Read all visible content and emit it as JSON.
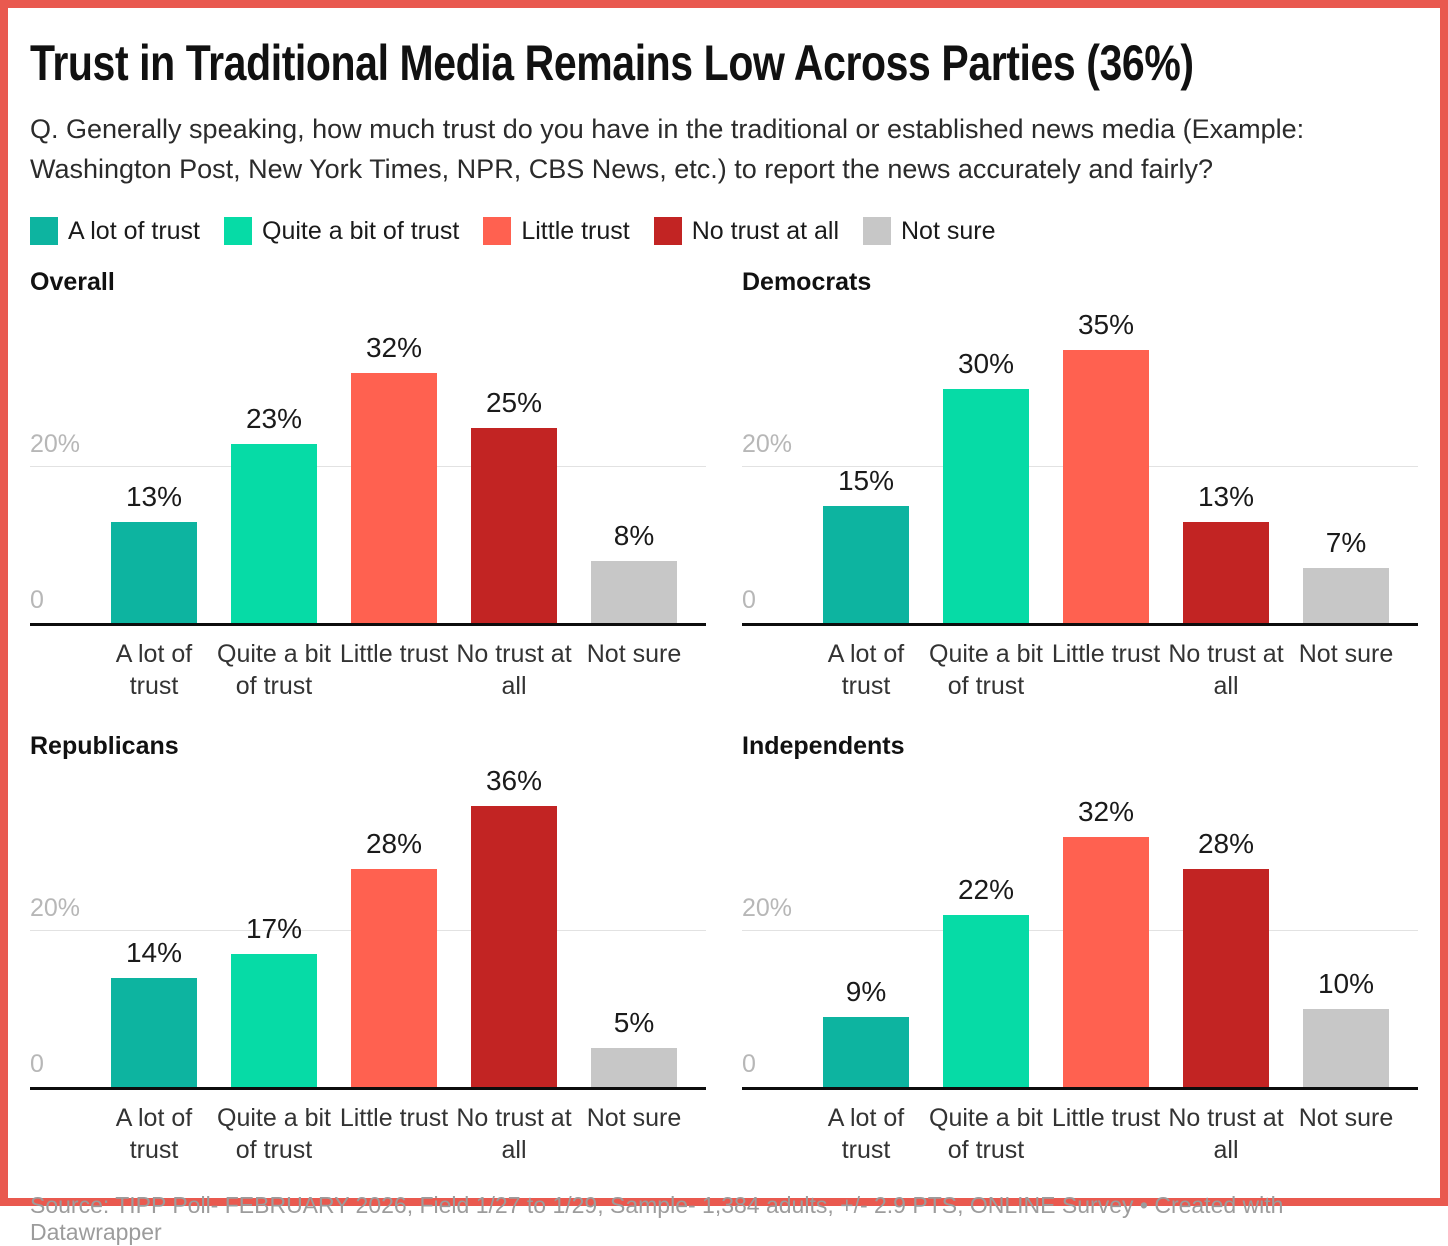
{
  "frame": {
    "border_color": "#e9594f"
  },
  "header": {
    "title": "Trust in Traditional Media Remains Low Across Parties (36%)",
    "subtitle": "Q. Generally speaking, how much trust do you have in the traditional or established news media (Example: Washington Post, New York Times, NPR, CBS News, etc.) to report the news accurately and fairly?"
  },
  "legend": {
    "position": "top",
    "items": [
      {
        "label": "A lot of trust",
        "color": "#0db4a0"
      },
      {
        "label": "Quite a bit of trust",
        "color": "#06dba6"
      },
      {
        "label": "Little trust",
        "color": "#ff6150"
      },
      {
        "label": "No trust at all",
        "color": "#c22423"
      },
      {
        "label": "Not sure",
        "color": "#c7c7c7"
      }
    ]
  },
  "axis": {
    "tick_top": "20%",
    "tick_zero": "0",
    "gridline_value": 20,
    "ymax": 40,
    "grid": "on"
  },
  "chart_data": [
    {
      "type": "bar",
      "title": "Overall",
      "categories": [
        "A lot of trust",
        "Quite a bit of trust",
        "Little trust",
        "No trust at all",
        "Not sure"
      ],
      "category_lines": [
        [
          "A lot of",
          "trust"
        ],
        [
          "Quite a bit",
          "of trust"
        ],
        [
          "Little trust"
        ],
        [
          "No trust at",
          "all"
        ],
        [
          "Not sure"
        ]
      ],
      "values": [
        13,
        23,
        32,
        25,
        8
      ],
      "value_labels": [
        "13%",
        "23%",
        "32%",
        "25%",
        "8%"
      ],
      "colors": [
        "#0db4a0",
        "#06dba6",
        "#ff6150",
        "#c22423",
        "#c7c7c7"
      ],
      "ylim": [
        0,
        40
      ],
      "yticks": [
        "0",
        "20%"
      ]
    },
    {
      "type": "bar",
      "title": "Democrats",
      "categories": [
        "A lot of trust",
        "Quite a bit of trust",
        "Little trust",
        "No trust at all",
        "Not sure"
      ],
      "category_lines": [
        [
          "A lot of",
          "trust"
        ],
        [
          "Quite a bit",
          "of trust"
        ],
        [
          "Little trust"
        ],
        [
          "No trust at",
          "all"
        ],
        [
          "Not sure"
        ]
      ],
      "values": [
        15,
        30,
        35,
        13,
        7
      ],
      "value_labels": [
        "15%",
        "30%",
        "35%",
        "13%",
        "7%"
      ],
      "colors": [
        "#0db4a0",
        "#06dba6",
        "#ff6150",
        "#c22423",
        "#c7c7c7"
      ],
      "ylim": [
        0,
        40
      ],
      "yticks": [
        "0",
        "20%"
      ]
    },
    {
      "type": "bar",
      "title": "Republicans",
      "categories": [
        "A lot of trust",
        "Quite a bit of trust",
        "Little trust",
        "No trust at all",
        "Not sure"
      ],
      "category_lines": [
        [
          "A lot of",
          "trust"
        ],
        [
          "Quite a bit",
          "of trust"
        ],
        [
          "Little trust"
        ],
        [
          "No trust at",
          "all"
        ],
        [
          "Not sure"
        ]
      ],
      "values": [
        14,
        17,
        28,
        36,
        5
      ],
      "value_labels": [
        "14%",
        "17%",
        "28%",
        "36%",
        "5%"
      ],
      "colors": [
        "#0db4a0",
        "#06dba6",
        "#ff6150",
        "#c22423",
        "#c7c7c7"
      ],
      "ylim": [
        0,
        40
      ],
      "yticks": [
        "0",
        "20%"
      ]
    },
    {
      "type": "bar",
      "title": "Independents",
      "categories": [
        "A lot of trust",
        "Quite a bit of trust",
        "Little trust",
        "No trust at all",
        "Not sure"
      ],
      "category_lines": [
        [
          "A lot of",
          "trust"
        ],
        [
          "Quite a bit",
          "of trust"
        ],
        [
          "Little trust"
        ],
        [
          "No trust at",
          "all"
        ],
        [
          "Not sure"
        ]
      ],
      "values": [
        9,
        22,
        32,
        28,
        10
      ],
      "value_labels": [
        "9%",
        "22%",
        "32%",
        "28%",
        "10%"
      ],
      "colors": [
        "#0db4a0",
        "#06dba6",
        "#ff6150",
        "#c22423",
        "#c7c7c7"
      ],
      "ylim": [
        0,
        40
      ],
      "yticks": [
        "0",
        "20%"
      ]
    }
  ],
  "footer": {
    "source": "Source: TIPP Poll- FEBRUARY 2026, Field 1/27 to 1/29, Sample- 1,384 adults, +/- 2.9 PTS, ONLINE Survey",
    "separator": " • ",
    "attribution": "Created with Datawrapper"
  }
}
